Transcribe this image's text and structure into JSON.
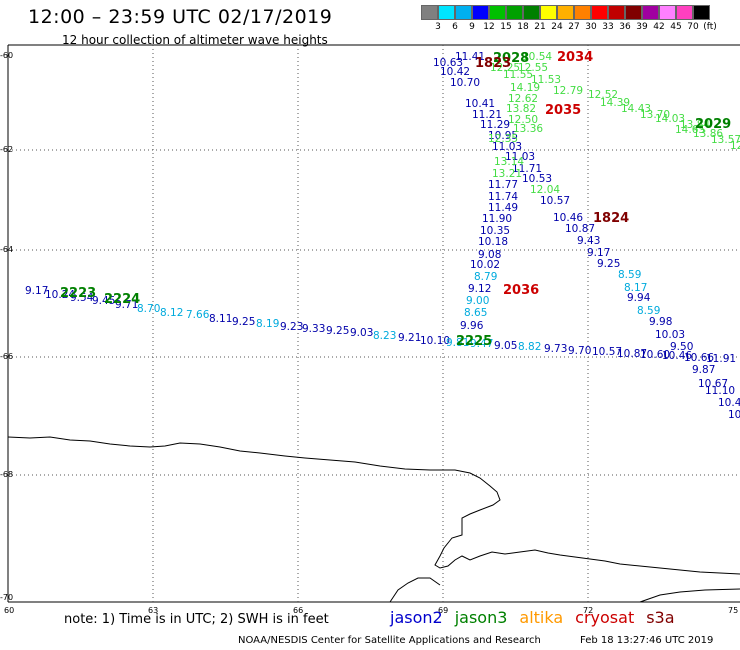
{
  "header": {
    "title": "12:00 – 23:59 UTC 02/17/2019",
    "subtitle": "12 hour collection of altimeter wave heights"
  },
  "color_scale": {
    "labels": [
      "3",
      "6",
      "9",
      "12",
      "15",
      "18",
      "21",
      "24",
      "27",
      "30",
      "33",
      "36",
      "39",
      "42",
      "45",
      "70",
      "(ft)"
    ],
    "colors": [
      "#808080",
      "#00e5ff",
      "#00b0f0",
      "#0000ff",
      "#00c000",
      "#00a000",
      "#008000",
      "#ffff00",
      "#ffb000",
      "#ff8000",
      "#ff0000",
      "#c00000",
      "#800000",
      "#a000a0",
      "#ff80ff",
      "#ff40c0",
      "#000000"
    ]
  },
  "axes": {
    "lat_labels": [
      "-60",
      "-62",
      "-64",
      "-66",
      "-68",
      "-70"
    ],
    "lon_labels": [
      "60",
      "63",
      "66",
      "69",
      "72",
      "75"
    ]
  },
  "passes": [
    {
      "label": "2028",
      "color": "#008000"
    },
    {
      "label": "1823",
      "color": "#800000"
    },
    {
      "label": "2034",
      "color": "#cc0000"
    },
    {
      "label": "2035",
      "color": "#cc0000"
    },
    {
      "label": "2029",
      "color": "#008000"
    },
    {
      "label": "1824",
      "color": "#800000"
    },
    {
      "label": "2036",
      "color": "#cc0000"
    },
    {
      "label": "2223",
      "color": "#008000"
    },
    {
      "label": "2224",
      "color": "#008000"
    },
    {
      "label": "2225",
      "color": "#008000"
    }
  ],
  "tracks": {
    "center_blue": [
      "11.41",
      "10.63",
      "10.42",
      "10.70",
      "10.41",
      "11.21",
      "11.29",
      "10.95",
      "11.03",
      "11.03",
      "11.71",
      "11.77",
      "10.53",
      "11.74",
      "11.49",
      "11.90",
      "10.35",
      "10.18",
      "9.08",
      "10.02",
      "9.12",
      "9.96",
      "10.57",
      "10.46",
      "10.87",
      "9.43",
      "9.17",
      "9.25",
      "9.94",
      "9.98",
      "10.03",
      "9.50",
      "9.87",
      "10.67",
      "11.10",
      "10.4",
      "10"
    ],
    "center_green": [
      "10.54",
      "12.55",
      "12.25",
      "11.55",
      "11.53",
      "14.19",
      "12.79",
      "12.62",
      "13.82",
      "12.50",
      "13.36",
      "12.35",
      "13.14",
      "13.21",
      "12.04"
    ],
    "right_green": [
      "12.52",
      "14.39",
      "14.43",
      "13.70",
      "14.03",
      "13.84",
      "14.65",
      "13.86",
      "13.57",
      "12"
    ],
    "center_cyan": [
      "8.79",
      "9.00",
      "8.65",
      "8.59",
      "8.17",
      "8.59"
    ],
    "bottom_track": [
      "9.17",
      "10.24",
      "9.54",
      "9.45",
      "9.71",
      "8.70",
      "8.12",
      "7.66",
      "8.11",
      "9.25",
      "8.19",
      "9.23",
      "9.33",
      "9.25",
      "9.03",
      "8.23",
      "9.21",
      "10.10",
      "9.81",
      "9.47",
      "9.05",
      "8.82",
      "9.73",
      "9.70",
      "10.57",
      "10.87",
      "10.60",
      "10.46",
      "10.66",
      "11.91"
    ]
  },
  "note": "note:  1) Time is in UTC;  2) SWH is in feet",
  "legend": [
    {
      "name": "jason2",
      "color": "#0000cc"
    },
    {
      "name": "jason3",
      "color": "#008000"
    },
    {
      "name": "altika",
      "color": "#ff9900"
    },
    {
      "name": "cryosat",
      "color": "#cc0000"
    },
    {
      "name": "s3a",
      "color": "#800000"
    }
  ],
  "footer": {
    "credit": "NOAA/NESDIS Center for Satellite Applications and Research",
    "timestamp": "Feb 18 13:27:46 UTC 2019"
  }
}
